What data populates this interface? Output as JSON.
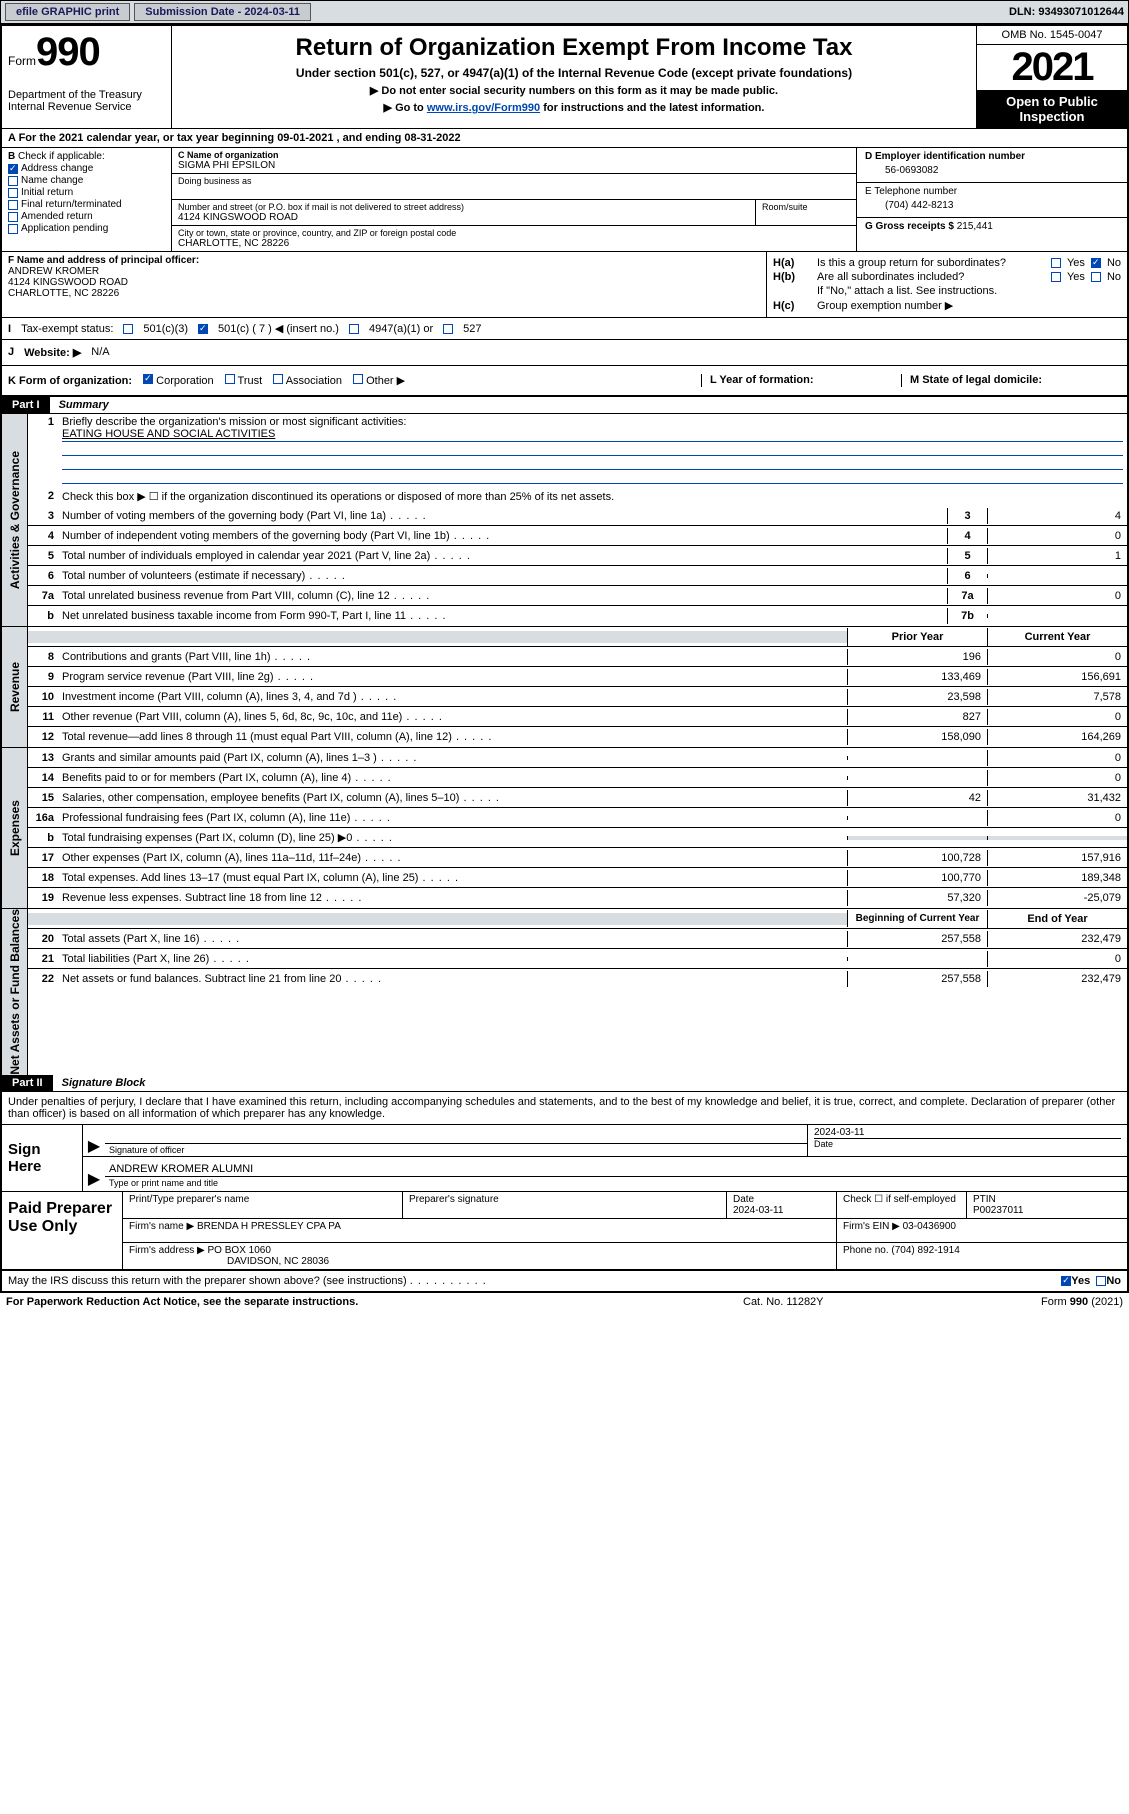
{
  "topbar": {
    "efile": "efile GRAPHIC print",
    "submission_label": "Submission Date - 2024-03-11",
    "dln": "DLN: 93493071012644"
  },
  "header": {
    "form_small": "Form",
    "form_num": "990",
    "dept1": "Department of the Treasury",
    "dept2": "Internal Revenue Service",
    "title": "Return of Organization Exempt From Income Tax",
    "subtitle": "Under section 501(c), 527, or 4947(a)(1) of the Internal Revenue Code (except private foundations)",
    "instr1": "Do not enter social security numbers on this form as it may be made public.",
    "instr2_pre": "Go to ",
    "instr2_link": "www.irs.gov/Form990",
    "instr2_post": " for instructions and the latest information.",
    "omb": "OMB No. 1545-0047",
    "year": "2021",
    "open": "Open to Public Inspection"
  },
  "rowA": "A For the 2021 calendar year, or tax year beginning 09-01-2021   , and ending 08-31-2022",
  "colB": {
    "lbl": "B Check if applicable:",
    "items": [
      "Address change",
      "Name change",
      "Initial return",
      "Final return/terminated",
      "Amended return",
      "Application pending"
    ],
    "checked_idx": 0
  },
  "colC": {
    "name_lbl": "C Name of organization",
    "name": "SIGMA PHI EPSILON",
    "dba_lbl": "Doing business as",
    "street_lbl": "Number and street (or P.O. box if mail is not delivered to street address)",
    "street": "4124 KINGSWOOD ROAD",
    "room_lbl": "Room/suite",
    "city_lbl": "City or town, state or province, country, and ZIP or foreign postal code",
    "city": "CHARLOTTE, NC  28226"
  },
  "colDE": {
    "d_lbl": "D Employer identification number",
    "d_val": "56-0693082",
    "e_lbl": "E Telephone number",
    "e_val": "(704) 442-8213",
    "g_lbl": "G Gross receipts $ ",
    "g_val": "215,441"
  },
  "colF": {
    "lbl": "F Name and address of principal officer:",
    "name": "ANDREW KROMER",
    "addr1": "4124 KINGSWOOD ROAD",
    "addr2": "CHARLOTTE, NC  28226"
  },
  "colH": {
    "ha": "Is this a group return for subordinates?",
    "hb": "Are all subordinates included?",
    "hb_note": "If \"No,\" attach a list. See instructions.",
    "hc": "Group exemption number ▶",
    "yes": "Yes",
    "no": "No"
  },
  "rowI": {
    "lbl": "Tax-exempt status:",
    "o1": "501(c)(3)",
    "o2": "501(c) ( 7 ) ◀ (insert no.)",
    "o3": "4947(a)(1) or",
    "o4": "527"
  },
  "rowJ": {
    "lbl": "Website: ▶",
    "val": "N/A"
  },
  "rowK": {
    "lbl": "K Form of organization:",
    "opts": [
      "Corporation",
      "Trust",
      "Association",
      "Other ▶"
    ],
    "L": "L Year of formation:",
    "M": "M State of legal domicile:"
  },
  "part1": {
    "hdr": "Part I",
    "title": "Summary",
    "side1": "Activities & Governance",
    "side2": "Revenue",
    "side3": "Expenses",
    "side4": "Net Assets or Fund Balances",
    "l1": "Briefly describe the organization's mission or most significant activities:",
    "mission": "EATING HOUSE AND SOCIAL ACTIVITIES",
    "l2": "Check this box ▶ ☐  if the organization discontinued its operations or disposed of more than 25% of its net assets.",
    "lines_gov": [
      {
        "n": "3",
        "t": "Number of voting members of the governing body (Part VI, line 1a)",
        "box": "3",
        "v": "4"
      },
      {
        "n": "4",
        "t": "Number of independent voting members of the governing body (Part VI, line 1b)",
        "box": "4",
        "v": "0"
      },
      {
        "n": "5",
        "t": "Total number of individuals employed in calendar year 2021 (Part V, line 2a)",
        "box": "5",
        "v": "1"
      },
      {
        "n": "6",
        "t": "Total number of volunteers (estimate if necessary)",
        "box": "6",
        "v": ""
      },
      {
        "n": "7a",
        "t": "Total unrelated business revenue from Part VIII, column (C), line 12",
        "box": "7a",
        "v": "0"
      },
      {
        "n": "b",
        "t": "Net unrelated business taxable income from Form 990-T, Part I, line 11",
        "box": "7b",
        "v": ""
      }
    ],
    "col_hdr_prior": "Prior Year",
    "col_hdr_curr": "Current Year",
    "lines_rev": [
      {
        "n": "8",
        "t": "Contributions and grants (Part VIII, line 1h)",
        "p": "196",
        "c": "0"
      },
      {
        "n": "9",
        "t": "Program service revenue (Part VIII, line 2g)",
        "p": "133,469",
        "c": "156,691"
      },
      {
        "n": "10",
        "t": "Investment income (Part VIII, column (A), lines 3, 4, and 7d )",
        "p": "23,598",
        "c": "7,578"
      },
      {
        "n": "11",
        "t": "Other revenue (Part VIII, column (A), lines 5, 6d, 8c, 9c, 10c, and 11e)",
        "p": "827",
        "c": "0"
      },
      {
        "n": "12",
        "t": "Total revenue—add lines 8 through 11 (must equal Part VIII, column (A), line 12)",
        "p": "158,090",
        "c": "164,269"
      }
    ],
    "lines_exp": [
      {
        "n": "13",
        "t": "Grants and similar amounts paid (Part IX, column (A), lines 1–3 )",
        "p": "",
        "c": "0"
      },
      {
        "n": "14",
        "t": "Benefits paid to or for members (Part IX, column (A), line 4)",
        "p": "",
        "c": "0"
      },
      {
        "n": "15",
        "t": "Salaries, other compensation, employee benefits (Part IX, column (A), lines 5–10)",
        "p": "42",
        "c": "31,432"
      },
      {
        "n": "16a",
        "t": "Professional fundraising fees (Part IX, column (A), line 11e)",
        "p": "",
        "c": "0"
      },
      {
        "n": "b",
        "t": "Total fundraising expenses (Part IX, column (D), line 25) ▶0",
        "p": "shade",
        "c": "shade"
      },
      {
        "n": "17",
        "t": "Other expenses (Part IX, column (A), lines 11a–11d, 11f–24e)",
        "p": "100,728",
        "c": "157,916"
      },
      {
        "n": "18",
        "t": "Total expenses. Add lines 13–17 (must equal Part IX, column (A), line 25)",
        "p": "100,770",
        "c": "189,348"
      },
      {
        "n": "19",
        "t": "Revenue less expenses. Subtract line 18 from line 12",
        "p": "57,320",
        "c": "-25,079"
      }
    ],
    "col_hdr_beg": "Beginning of Current Year",
    "col_hdr_end": "End of Year",
    "lines_net": [
      {
        "n": "20",
        "t": "Total assets (Part X, line 16)",
        "p": "257,558",
        "c": "232,479"
      },
      {
        "n": "21",
        "t": "Total liabilities (Part X, line 26)",
        "p": "",
        "c": "0"
      },
      {
        "n": "22",
        "t": "Net assets or fund balances. Subtract line 21 from line 20",
        "p": "257,558",
        "c": "232,479"
      }
    ]
  },
  "part2": {
    "hdr": "Part II",
    "title": "Signature Block",
    "intro": "Under penalties of perjury, I declare that I have examined this return, including accompanying schedules and statements, and to the best of my knowledge and belief, it is true, correct, and complete. Declaration of preparer (other than officer) is based on all information of which preparer has any knowledge.",
    "sign_here": "Sign Here",
    "sig_officer_lbl": "Signature of officer",
    "sig_date": "2024-03-11",
    "date_lbl": "Date",
    "sig_name": "ANDREW KROMER  ALUMNI",
    "sig_name_lbl": "Type or print name and title",
    "paid": "Paid Preparer Use Only",
    "prep_hdr": [
      "Print/Type preparer's name",
      "Preparer's signature",
      "Date",
      "",
      "PTIN"
    ],
    "prep_date": "2024-03-11",
    "prep_check": "Check ☐ if self-employed",
    "prep_ptin": "P00237011",
    "firm_name_lbl": "Firm's name      ▶",
    "firm_name": "BRENDA H PRESSLEY CPA PA",
    "firm_ein_lbl": "Firm's EIN ▶",
    "firm_ein": "03-0436900",
    "firm_addr_lbl": "Firm's address ▶",
    "firm_addr1": "PO BOX 1060",
    "firm_addr2": "DAVIDSON, NC  28036",
    "phone_lbl": "Phone no.",
    "phone": "(704) 892-1914",
    "may_irs": "May the IRS discuss this return with the preparer shown above? (see instructions)"
  },
  "footer": {
    "f1": "For Paperwork Reduction Act Notice, see the separate instructions.",
    "f2": "Cat. No. 11282Y",
    "f3": "Form 990 (2021)"
  }
}
